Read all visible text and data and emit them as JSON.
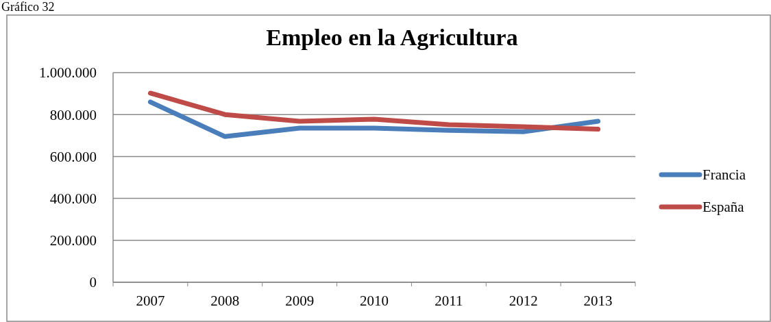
{
  "chart_data": {
    "type": "line",
    "title": "Empleo en la Agricultura",
    "annotations": [
      "Gráfico 32"
    ],
    "categories": [
      "2007",
      "2008",
      "2009",
      "2010",
      "2011",
      "2012",
      "2013"
    ],
    "series": [
      {
        "name": "Francia",
        "color": "#4a7ebb",
        "values": [
          860000,
          695000,
          735000,
          735000,
          725000,
          718000,
          768000
        ]
      },
      {
        "name": "España",
        "color": "#be4b48",
        "values": [
          902000,
          800000,
          768000,
          778000,
          752000,
          742000,
          730000
        ]
      }
    ],
    "ylim": [
      0,
      1000000
    ],
    "yticks": [
      {
        "value": 0,
        "label": "0"
      },
      {
        "value": 200000,
        "label": "200.000"
      },
      {
        "value": 400000,
        "label": "400.000"
      },
      {
        "value": 600000,
        "label": "600.000"
      },
      {
        "value": 800000,
        "label": "800.000"
      },
      {
        "value": 1000000,
        "label": "1.000.000"
      }
    ],
    "grid": "y",
    "legend": "right",
    "marker": "none",
    "line_style": "solid"
  }
}
